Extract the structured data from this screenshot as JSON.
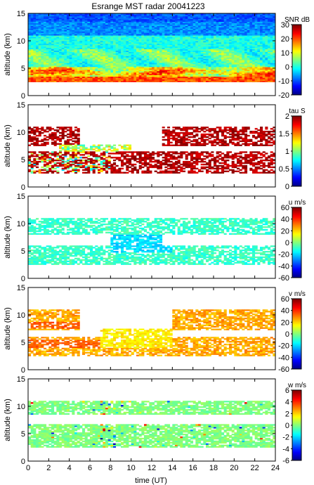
{
  "figure_title": "Esrange MST radar 20041223",
  "x_label": "time (UT)",
  "chart_data": [
    {
      "type": "heatmap",
      "panel": "SNR",
      "xlabel": "time (UT)",
      "ylabel": "altitude (km)",
      "xlim": [
        0,
        24
      ],
      "ylim": [
        0,
        15
      ],
      "x_ticks": [
        0,
        2,
        4,
        6,
        8,
        10,
        12,
        14,
        16,
        18,
        20,
        22,
        24
      ],
      "y_ticks": [
        0,
        5,
        10,
        15
      ],
      "data_altitude_range": [
        2.4,
        15
      ],
      "colorbar": {
        "title": "SNR dB",
        "range": [
          -20,
          30
        ],
        "ticks": [
          30,
          20,
          10,
          0,
          -10,
          -20
        ]
      },
      "colormap": "jet",
      "layers": [
        {
          "altitude_km": 3.0,
          "value": 18
        },
        {
          "altitude_km": 4.5,
          "value": 10
        },
        {
          "altitude_km": 7.5,
          "value": 5
        },
        {
          "altitude_km": 10.0,
          "value": 2
        },
        {
          "altitude_km": 14.0,
          "value": -8
        }
      ]
    },
    {
      "type": "heatmap",
      "panel": "tau",
      "xlabel": "time (UT)",
      "ylabel": "altitude (km)",
      "xlim": [
        0,
        24
      ],
      "ylim": [
        0,
        15
      ],
      "x_ticks": [
        0,
        2,
        4,
        6,
        8,
        10,
        12,
        14,
        16,
        18,
        20,
        22,
        24
      ],
      "y_ticks": [
        0,
        5,
        10,
        15
      ],
      "colorbar": {
        "title": "tau S",
        "range": [
          0,
          2
        ],
        "ticks": [
          2,
          1.5,
          1,
          0.5,
          0
        ]
      },
      "colormap": "jet",
      "layers": [
        {
          "altitude_km": 3.5,
          "value": 1.9
        },
        {
          "altitude_km": 5.5,
          "value": 1.8
        },
        {
          "altitude_km": 9.5,
          "value": 1.9
        }
      ]
    },
    {
      "type": "heatmap",
      "panel": "u",
      "xlabel": "time (UT)",
      "ylabel": "altitude (km)",
      "xlim": [
        0,
        24
      ],
      "ylim": [
        0,
        15
      ],
      "x_ticks": [
        0,
        2,
        4,
        6,
        8,
        10,
        12,
        14,
        16,
        18,
        20,
        22,
        24
      ],
      "y_ticks": [
        0,
        5,
        10,
        15
      ],
      "colorbar": {
        "title": "u m/s",
        "range": [
          -60,
          60
        ],
        "ticks": [
          60,
          40,
          20,
          0,
          -20,
          -40,
          -60
        ]
      },
      "colormap": "jet",
      "layers": [
        {
          "altitude_km": 3.0,
          "value": -10
        },
        {
          "altitude_km": 5.0,
          "value": -15
        },
        {
          "altitude_km": 9.5,
          "value": -20
        }
      ]
    },
    {
      "type": "heatmap",
      "panel": "v",
      "xlabel": "time (UT)",
      "ylabel": "altitude (km)",
      "xlim": [
        0,
        24
      ],
      "ylim": [
        0,
        15
      ],
      "x_ticks": [
        0,
        2,
        4,
        6,
        8,
        10,
        12,
        14,
        16,
        18,
        20,
        22,
        24
      ],
      "y_ticks": [
        0,
        5,
        10,
        15
      ],
      "colorbar": {
        "title": "v m/s",
        "range": [
          -60,
          60
        ],
        "ticks": [
          60,
          40,
          20,
          0,
          -20,
          -40,
          -60
        ]
      },
      "colormap": "jet",
      "layers": [
        {
          "altitude_km": 3.5,
          "value": 15
        },
        {
          "altitude_km": 5.0,
          "value": 25
        },
        {
          "altitude_km": 8.0,
          "value": 25
        },
        {
          "altitude_km": 10.0,
          "value": 15
        }
      ]
    },
    {
      "type": "heatmap",
      "panel": "w",
      "xlabel": "time (UT)",
      "ylabel": "altitude (km)",
      "xlim": [
        0,
        24
      ],
      "ylim": [
        0,
        15
      ],
      "x_ticks": [
        0,
        2,
        4,
        6,
        8,
        10,
        12,
        14,
        16,
        18,
        20,
        22,
        24
      ],
      "y_ticks": [
        0,
        5,
        10,
        15
      ],
      "colorbar": {
        "title": "w m/s",
        "range": [
          -6,
          6
        ],
        "ticks": [
          6,
          4,
          2,
          0,
          -2,
          -4,
          -6
        ]
      },
      "colormap": "jet",
      "layers": [
        {
          "altitude_km": 3.5,
          "value": 0
        },
        {
          "altitude_km": 6.0,
          "value": 0.5
        },
        {
          "altitude_km": 10.0,
          "value": 0.5
        }
      ]
    }
  ]
}
